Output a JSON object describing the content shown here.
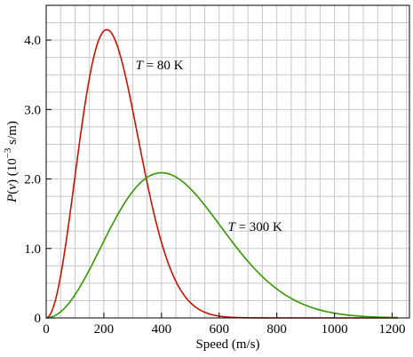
{
  "chart_data": {
    "type": "line",
    "title": "",
    "xlabel": "Speed (m/s)",
    "ylabel_parts": {
      "main": "P(v) (10",
      "sup": "−3",
      "unit": " s/m)"
    },
    "xlim": [
      0,
      1260
    ],
    "ylim": [
      0,
      4.5
    ],
    "xticks": [
      0,
      200,
      400,
      600,
      800,
      1000,
      1200
    ],
    "yticks": [
      0,
      1.0,
      2.0,
      3.0,
      4.0
    ],
    "ytick_labels": [
      "0",
      "1.0",
      "2.0",
      "3.0",
      "4.0"
    ],
    "grid": true,
    "series": [
      {
        "label_var": "T",
        "label_rest": " = 80 K",
        "color": "#cc1100",
        "temperature_K": 80,
        "peak_speed": 210,
        "peak_density": 4.15,
        "x_range": [
          0,
          1220
        ]
      },
      {
        "label_var": "T",
        "label_rest": " = 300 K",
        "color": "#339900",
        "temperature_K": 300,
        "peak_speed": 400,
        "peak_density": 2.09,
        "x_range": [
          0,
          1220
        ]
      }
    ]
  }
}
